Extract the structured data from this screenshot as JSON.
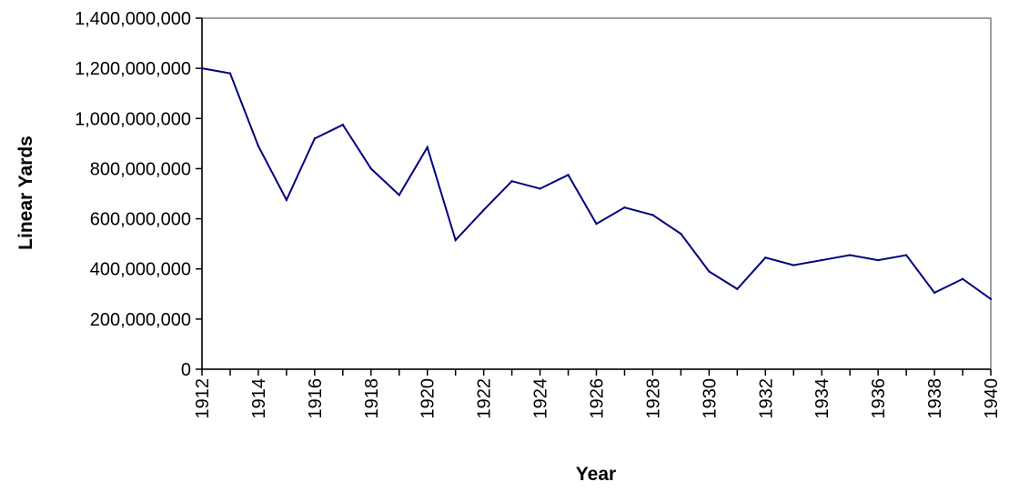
{
  "chart_data": {
    "type": "line",
    "title": "",
    "xlabel": "Year",
    "ylabel": "Linear Yards",
    "ylim": [
      0,
      1400000000
    ],
    "yticks": [
      0,
      200000000,
      400000000,
      600000000,
      800000000,
      1000000000,
      1200000000,
      1400000000
    ],
    "ytick_labels": [
      "0",
      "200,000,000",
      "400,000,000",
      "600,000,000",
      "800,000,000",
      "1,000,000,000",
      "1,200,000,000",
      "1,400,000,000"
    ],
    "xtick_labels": [
      "1912",
      "1914",
      "1916",
      "1918",
      "1920",
      "1922",
      "1924",
      "1926",
      "1928",
      "1930",
      "1932",
      "1934",
      "1936",
      "1938",
      "1940"
    ],
    "grid": false,
    "legend": "none",
    "x": [
      1912,
      1913,
      1914,
      1915,
      1916,
      1917,
      1918,
      1919,
      1920,
      1921,
      1922,
      1923,
      1924,
      1925,
      1926,
      1927,
      1928,
      1929,
      1930,
      1931,
      1932,
      1933,
      1934,
      1935,
      1936,
      1937,
      1938,
      1939,
      1940
    ],
    "values": [
      1200000000,
      1180000000,
      890000000,
      675000000,
      920000000,
      975000000,
      800000000,
      695000000,
      885000000,
      515000000,
      635000000,
      750000000,
      720000000,
      775000000,
      580000000,
      645000000,
      615000000,
      540000000,
      390000000,
      320000000,
      445000000,
      415000000,
      435000000,
      455000000,
      435000000,
      455000000,
      305000000,
      360000000,
      280000000
    ],
    "line_color": "#000080"
  }
}
